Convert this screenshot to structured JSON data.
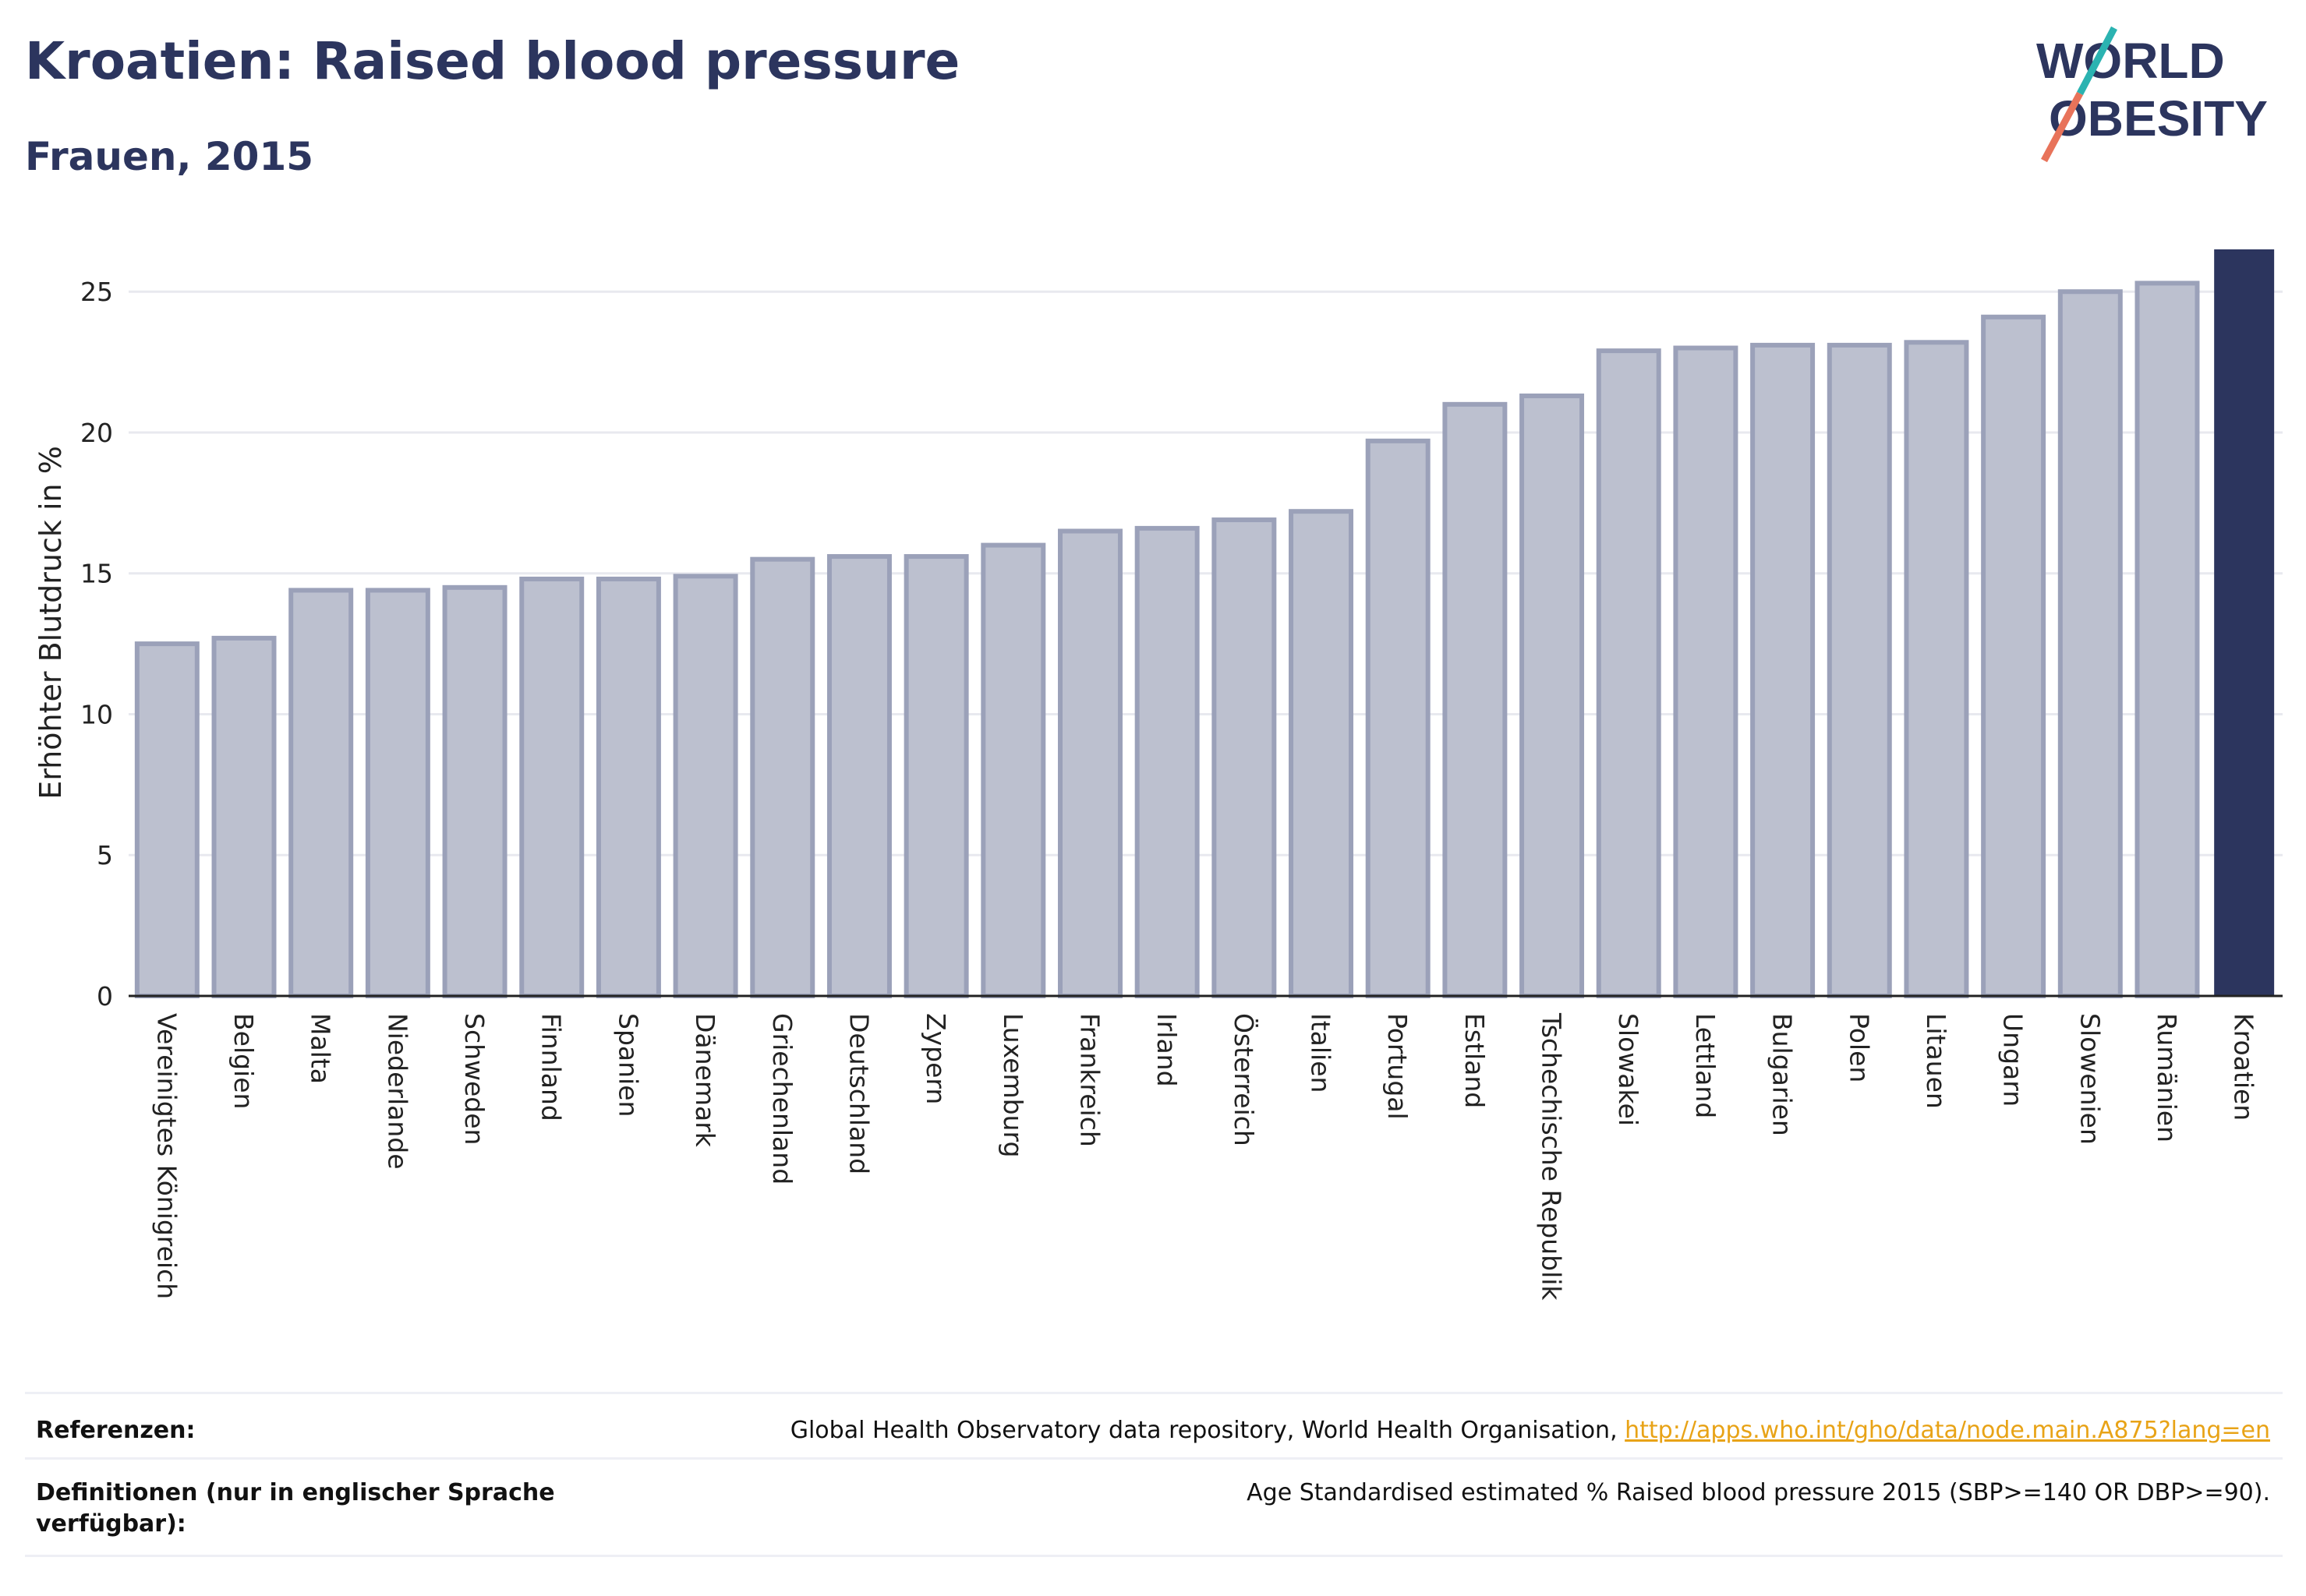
{
  "title": "Kroatien: Raised blood pressure",
  "subtitle": "Frauen, 2015",
  "logo": {
    "line1": "WORLD",
    "line2": "OBESITY",
    "accent_teal": "#2bb3b1",
    "accent_coral": "#e8735a"
  },
  "colors": {
    "bar": "#bcc0cf",
    "bar_border": "#9ba1b9",
    "highlight": "#2c355e",
    "grid": "#e8e9ef"
  },
  "chart_data": {
    "type": "bar",
    "ylabel": "Erhöhter Blutdruck in %",
    "xlabel": "",
    "ylim": [
      0,
      26.5
    ],
    "yticks": [
      0,
      5,
      10,
      15,
      20,
      25
    ],
    "grid": true,
    "highlight": "Kroatien",
    "categories": [
      "Vereinigtes Königreich",
      "Belgien",
      "Malta",
      "Niederlande",
      "Schweden",
      "Finnland",
      "Spanien",
      "Dänemark",
      "Griechenland",
      "Deutschland",
      "Zypern",
      "Luxemburg",
      "Frankreich",
      "Irland",
      "Österreich",
      "Italien",
      "Portugal",
      "Estland",
      "Tschechische Republik",
      "Slowakei",
      "Lettland",
      "Bulgarien",
      "Polen",
      "Litauen",
      "Ungarn",
      "Slowenien",
      "Rumänien",
      "Kroatien"
    ],
    "values": [
      12.5,
      12.7,
      14.4,
      14.4,
      14.5,
      14.8,
      14.8,
      14.9,
      15.5,
      15.6,
      15.6,
      16.0,
      16.5,
      16.6,
      16.9,
      17.2,
      19.7,
      21.0,
      21.3,
      22.9,
      23.0,
      23.1,
      23.1,
      23.2,
      24.1,
      25.0,
      25.3,
      26.5
    ]
  },
  "footer": {
    "references_label": "Referenzen:",
    "references_text": "Global Health Observatory data repository, World Health Organisation, ",
    "references_link": "http://apps.who.int/gho/data/node.main.A875?lang=en",
    "definitions_label": "Definitionen (nur in englischer Sprache verfügbar):",
    "definitions_text": "Age Standardised estimated % Raised blood pressure 2015 (SBP>=140 OR DBP>=90)."
  }
}
